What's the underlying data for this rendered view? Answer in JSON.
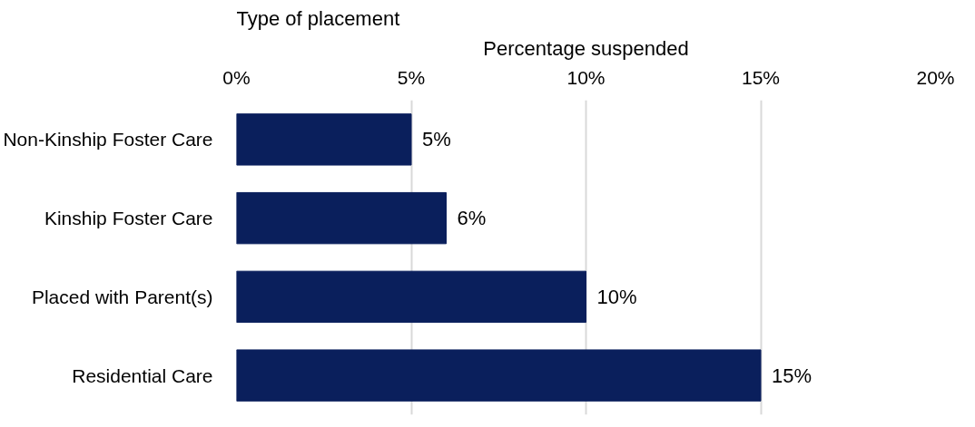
{
  "chart_data": {
    "type": "bar",
    "orientation": "horizontal",
    "xlabel": "Percentage suspended",
    "ylabel": "Type of placement",
    "categories": [
      "Non-Kinship Foster Care",
      "Kinship Foster Care",
      "Placed with Parent(s)",
      "Residential Care"
    ],
    "values": [
      5,
      6,
      10,
      15
    ],
    "color": "#0a1f5c",
    "value_labels": [
      "5%",
      "6%",
      "10%",
      "15%"
    ],
    "xlim": [
      0,
      20
    ],
    "xticks": [
      {
        "value": 0,
        "label": "0%"
      },
      {
        "value": 5,
        "label": "5%"
      },
      {
        "value": 10,
        "label": "10%"
      },
      {
        "value": 15,
        "label": "15%"
      },
      {
        "value": 20,
        "label": "20%"
      }
    ],
    "grid": "x"
  }
}
